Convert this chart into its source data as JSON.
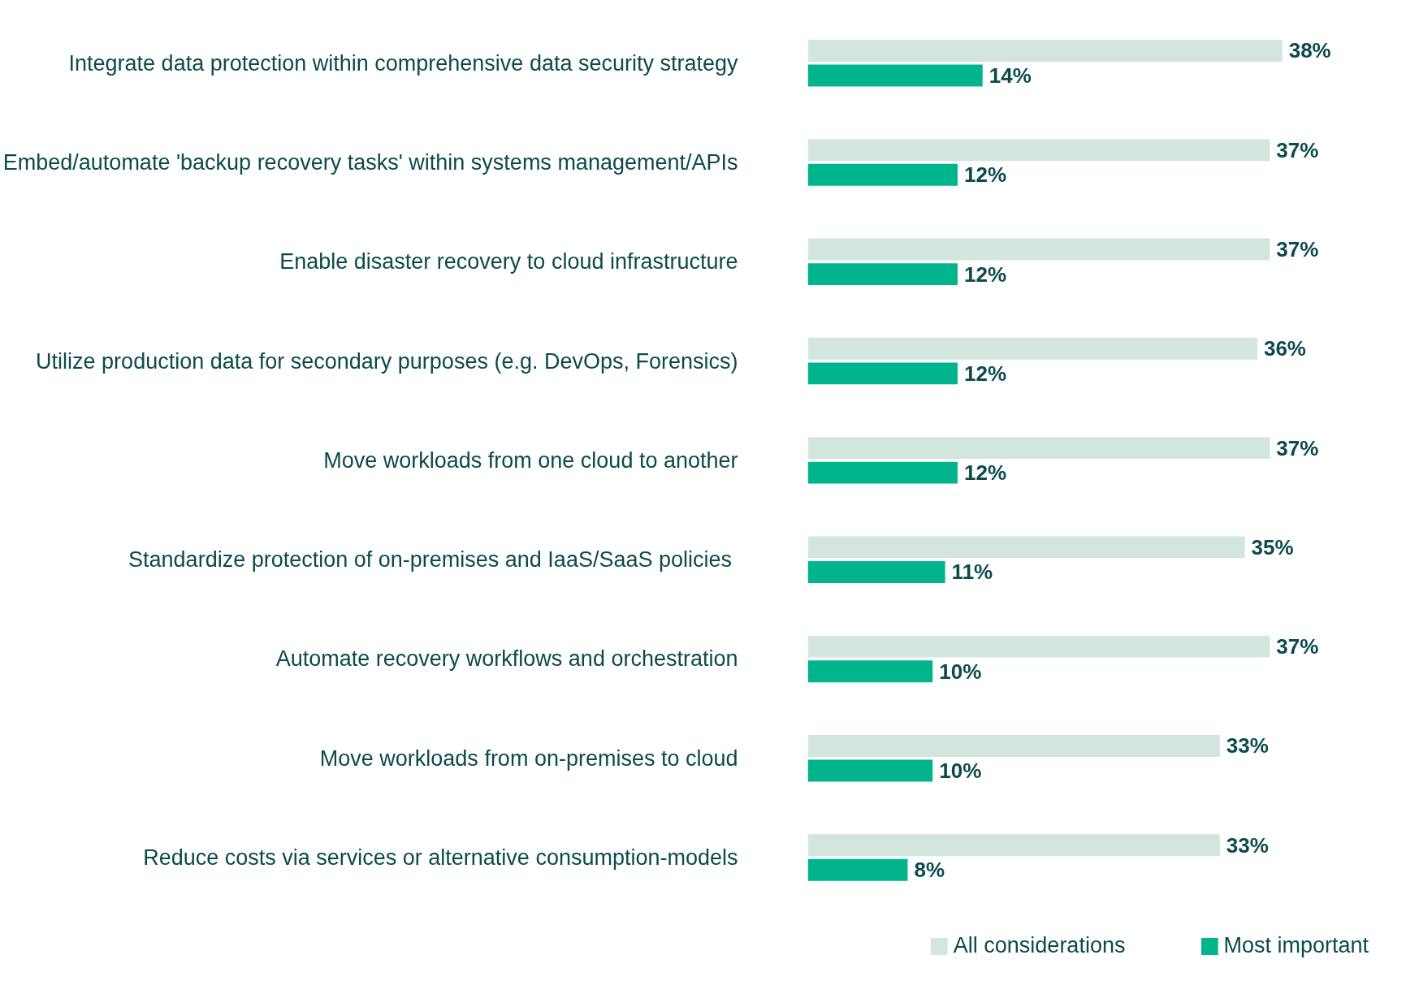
{
  "chart_data": {
    "type": "bar",
    "orientation": "horizontal",
    "categories": [
      "Integrate data protection within comprehensive data security strategy",
      "Embed/automate 'backup recovery tasks' within systems management/APIs",
      "Enable disaster recovery to cloud infrastructure",
      "Utilize production data for secondary purposes (e.g. DevOps, Forensics)",
      "Move workloads from one cloud to another",
      "Standardize  protection of on-premises and IaaS/SaaS policies",
      "Automate recovery workflows and orchestration",
      "Move workloads from on-premises to cloud",
      "Reduce costs via services or alternative consumption-models"
    ],
    "series": [
      {
        "name": "All considerations",
        "color": "#d3e6dd",
        "values": [
          38,
          37,
          37,
          36,
          37,
          35,
          37,
          33,
          33
        ],
        "value_labels": [
          "38%",
          "37%",
          "37%",
          "36%",
          "37%",
          "35%",
          "37%",
          "33%",
          "33%"
        ]
      },
      {
        "name": "Most important",
        "color": "#00b58e",
        "values": [
          14,
          12,
          12,
          12,
          12,
          11,
          10,
          10,
          8
        ],
        "value_labels": [
          "14%",
          "12%",
          "12%",
          "12%",
          "12%",
          "11%",
          "10%",
          "10%",
          "8%"
        ]
      }
    ],
    "legend": "bottom",
    "grid": false
  }
}
